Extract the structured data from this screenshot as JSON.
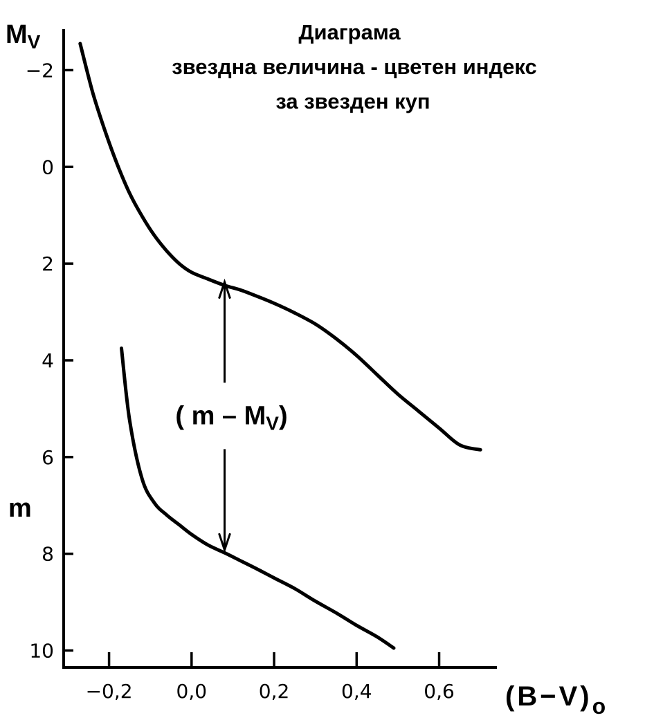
{
  "chart_data": {
    "type": "line",
    "title": [
      "Диаграма",
      "звездна величина - цветен индекс",
      "за звезден куп"
    ],
    "ylabel_top": {
      "main": "M",
      "sub": "V"
    },
    "ylabel_left": "m",
    "xlabel": {
      "main": "(B−V)",
      "sub": "o"
    },
    "annotation": {
      "open": "( m – M",
      "sub": "V",
      "close": ")"
    },
    "annotation_x": 0.08,
    "annotation_y_range": [
      2.35,
      7.95
    ],
    "xlim": [
      -0.31,
      0.74
    ],
    "ylim_inverted": [
      -2.85,
      10.35
    ],
    "x_ticks": [
      -0.2,
      0.0,
      0.2,
      0.4,
      0.6
    ],
    "x_tick_labels": [
      "−0,2",
      "0,0",
      "0,2",
      "0,4",
      "0,6"
    ],
    "y_ticks": [
      -2,
      0,
      2,
      4,
      6,
      8,
      10
    ],
    "y_tick_labels": [
      "−2",
      "0",
      "2",
      "4",
      "6",
      "8",
      "10"
    ],
    "series": [
      {
        "x": [
          -0.27,
          -0.24,
          -0.21,
          -0.18,
          -0.15,
          -0.12,
          -0.09,
          -0.06,
          -0.03,
          0.0,
          0.04,
          0.08,
          0.12,
          0.16,
          0.2,
          0.25,
          0.3,
          0.35,
          0.4,
          0.45,
          0.5,
          0.55,
          0.6,
          0.65,
          0.7
        ],
        "y": [
          -2.55,
          -1.55,
          -0.75,
          -0.05,
          0.55,
          1.02,
          1.42,
          1.74,
          2.0,
          2.18,
          2.32,
          2.45,
          2.55,
          2.68,
          2.82,
          3.02,
          3.25,
          3.55,
          3.9,
          4.3,
          4.7,
          5.05,
          5.4,
          5.75,
          5.85
        ]
      },
      {
        "x": [
          -0.17,
          -0.15,
          -0.12,
          -0.09,
          -0.06,
          -0.03,
          0.0,
          0.04,
          0.08,
          0.12,
          0.16,
          0.2,
          0.25,
          0.3,
          0.35,
          0.4,
          0.45,
          0.49
        ],
        "y": [
          3.75,
          5.25,
          6.45,
          6.95,
          7.2,
          7.4,
          7.6,
          7.82,
          7.98,
          8.15,
          8.32,
          8.5,
          8.72,
          8.98,
          9.22,
          9.48,
          9.72,
          9.95
        ]
      }
    ]
  }
}
